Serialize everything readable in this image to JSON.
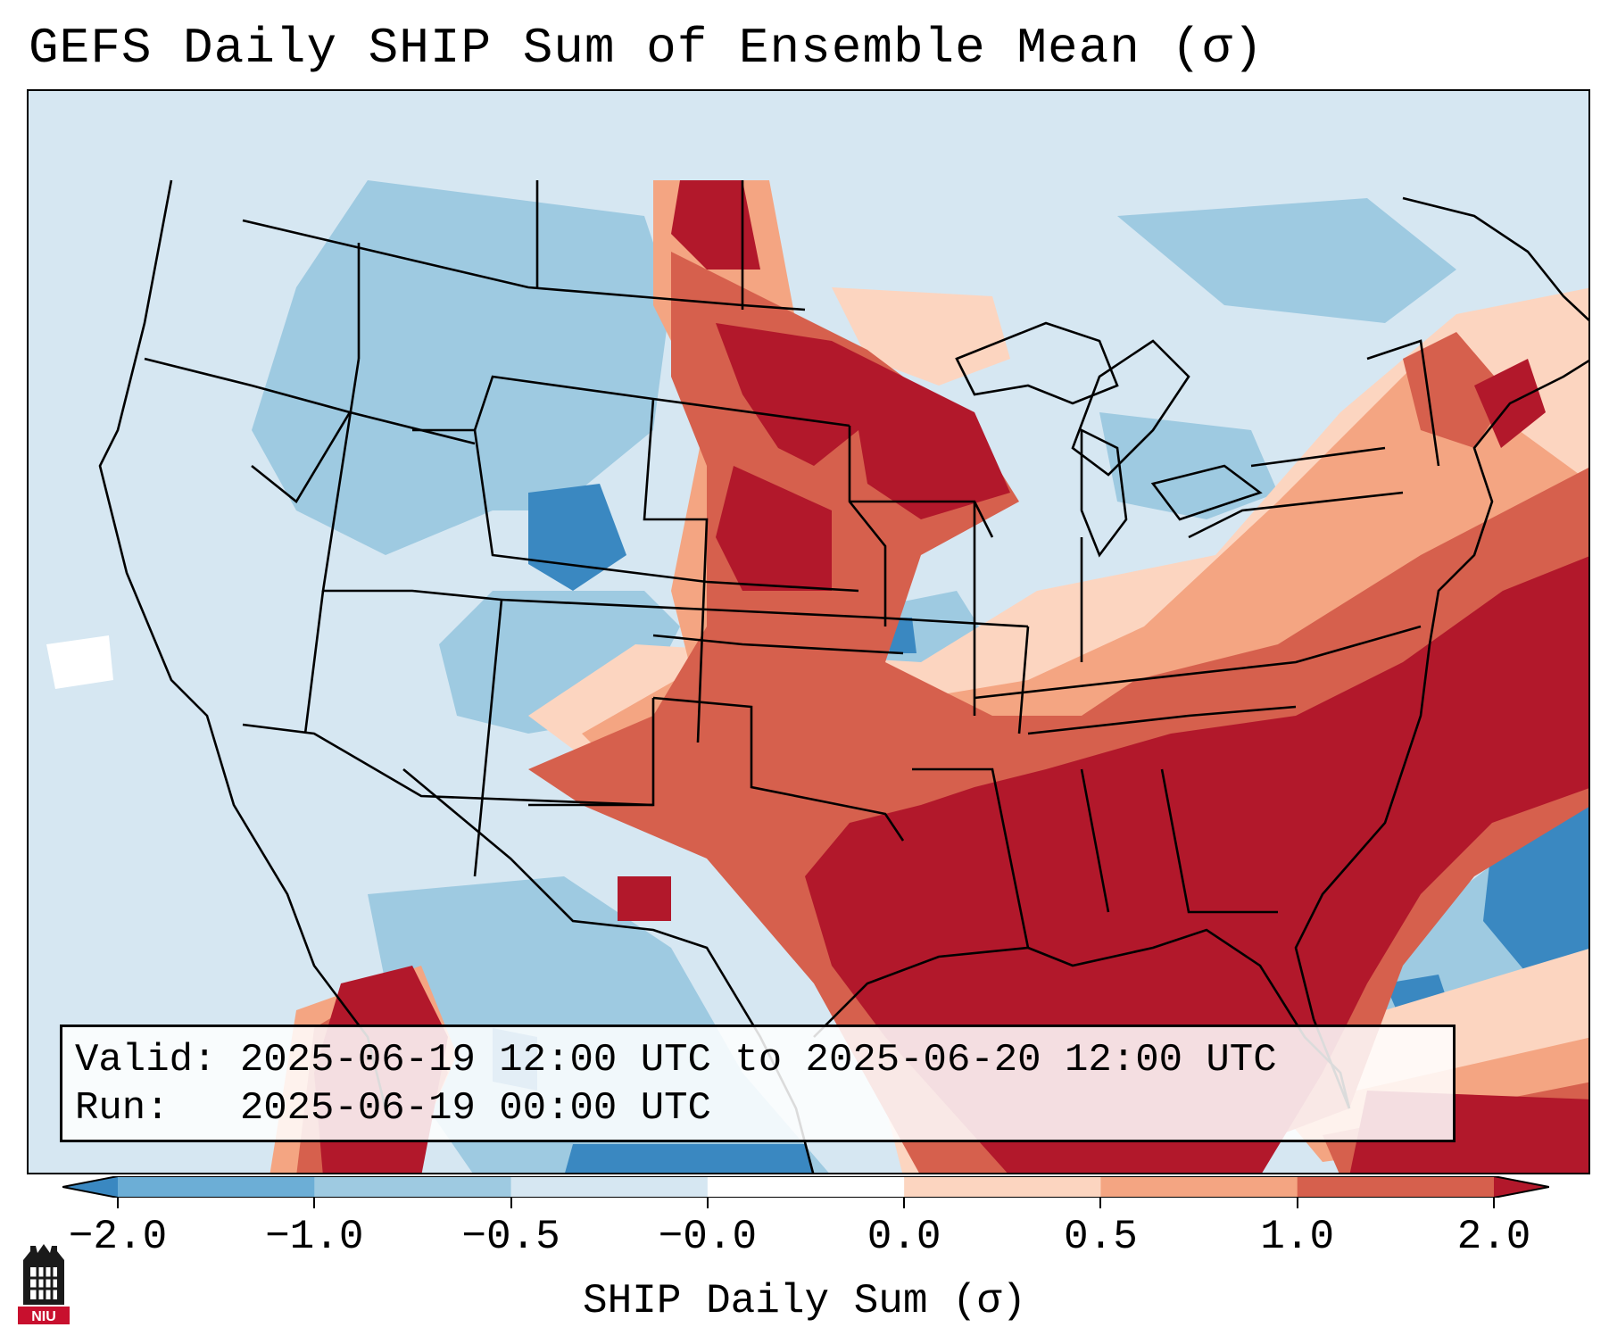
{
  "title": "GEFS Daily SHIP Sum of Ensemble Mean (σ)",
  "info": {
    "valid": "Valid: 2025-06-19 12:00 UTC to 2025-06-20 12:00 UTC",
    "run": "Run:   2025-06-19 00:00 UTC"
  },
  "colorbar": {
    "label": "SHIP Daily Sum (σ)",
    "ticks": [
      "−2.0",
      "−1.0",
      "−0.5",
      "−0.0",
      "0.0",
      "0.5",
      "1.0",
      "2.0"
    ],
    "bins": [
      {
        "color": "#3a88c1"
      },
      {
        "color": "#6caed6"
      },
      {
        "color": "#9ecae1"
      },
      {
        "color": "#d6e7f2"
      },
      {
        "color": "#ffffff"
      },
      {
        "color": "#fcd5c0"
      },
      {
        "color": "#f4a582"
      },
      {
        "color": "#d6604d"
      },
      {
        "color": "#b2182b"
      }
    ]
  },
  "logo": {
    "text": "NIU"
  },
  "map": {
    "region": "Contiguous United States",
    "background_color": "#d6e7f2"
  }
}
